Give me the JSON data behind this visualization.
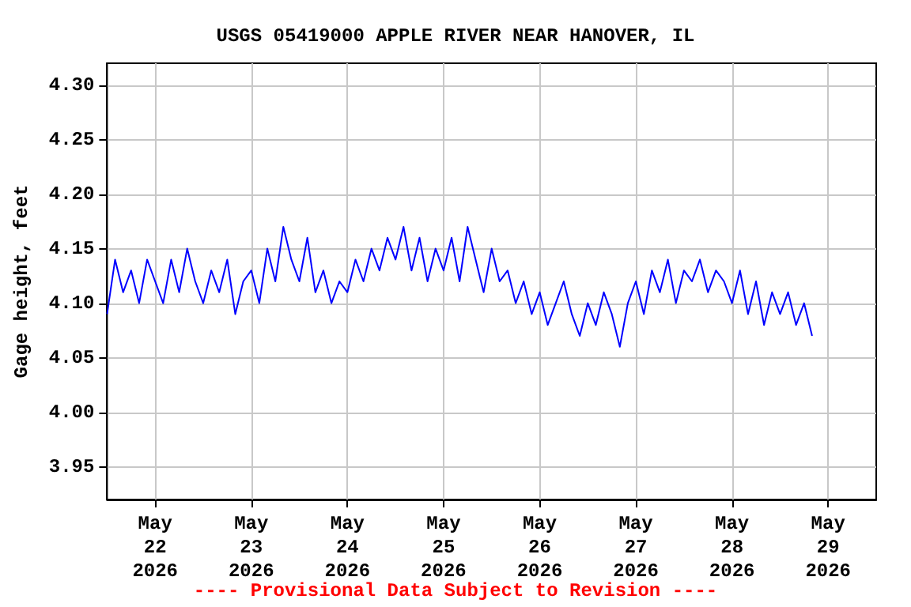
{
  "chart_data": {
    "type": "line",
    "title": "USGS 05419000 APPLE RIVER NEAR HANOVER, IL",
    "ylabel": "Gage height, feet",
    "annotations": [
      "---- Provisional Data Subject to Revision ----"
    ],
    "x": [
      "2026-05-21T12:00",
      "2026-05-21T14:00",
      "2026-05-21T16:00",
      "2026-05-21T18:00",
      "2026-05-21T20:00",
      "2026-05-21T22:00",
      "2026-05-22T00:00",
      "2026-05-22T02:00",
      "2026-05-22T04:00",
      "2026-05-22T06:00",
      "2026-05-22T08:00",
      "2026-05-22T10:00",
      "2026-05-22T12:00",
      "2026-05-22T14:00",
      "2026-05-22T16:00",
      "2026-05-22T18:00",
      "2026-05-22T20:00",
      "2026-05-22T22:00",
      "2026-05-23T00:00",
      "2026-05-23T02:00",
      "2026-05-23T04:00",
      "2026-05-23T06:00",
      "2026-05-23T08:00",
      "2026-05-23T10:00",
      "2026-05-23T12:00",
      "2026-05-23T14:00",
      "2026-05-23T16:00",
      "2026-05-23T18:00",
      "2026-05-23T20:00",
      "2026-05-23T22:00",
      "2026-05-24T00:00",
      "2026-05-24T02:00",
      "2026-05-24T04:00",
      "2026-05-24T06:00",
      "2026-05-24T08:00",
      "2026-05-24T10:00",
      "2026-05-24T12:00",
      "2026-05-24T14:00",
      "2026-05-24T16:00",
      "2026-05-24T18:00",
      "2026-05-24T20:00",
      "2026-05-24T22:00",
      "2026-05-25T00:00",
      "2026-05-25T02:00",
      "2026-05-25T04:00",
      "2026-05-25T06:00",
      "2026-05-25T08:00",
      "2026-05-25T10:00",
      "2026-05-25T12:00",
      "2026-05-25T14:00",
      "2026-05-25T16:00",
      "2026-05-25T18:00",
      "2026-05-25T20:00",
      "2026-05-25T22:00",
      "2026-05-26T00:00",
      "2026-05-26T02:00",
      "2026-05-26T04:00",
      "2026-05-26T06:00",
      "2026-05-26T08:00",
      "2026-05-26T10:00",
      "2026-05-26T12:00",
      "2026-05-26T14:00",
      "2026-05-26T16:00",
      "2026-05-26T18:00",
      "2026-05-26T20:00",
      "2026-05-26T22:00",
      "2026-05-27T00:00",
      "2026-05-27T02:00",
      "2026-05-27T04:00",
      "2026-05-27T06:00",
      "2026-05-27T08:00",
      "2026-05-27T10:00",
      "2026-05-27T12:00",
      "2026-05-27T14:00",
      "2026-05-27T16:00",
      "2026-05-27T18:00",
      "2026-05-27T20:00",
      "2026-05-27T22:00",
      "2026-05-28T00:00",
      "2026-05-28T02:00",
      "2026-05-28T04:00",
      "2026-05-28T06:00",
      "2026-05-28T08:00",
      "2026-05-28T10:00",
      "2026-05-28T12:00",
      "2026-05-28T14:00",
      "2026-05-28T16:00",
      "2026-05-28T18:00",
      "2026-05-28T20:00"
    ],
    "series": [
      {
        "color": "#0000ff",
        "values": [
          4.09,
          4.14,
          4.11,
          4.13,
          4.1,
          4.14,
          4.12,
          4.1,
          4.14,
          4.11,
          4.15,
          4.12,
          4.1,
          4.13,
          4.11,
          4.14,
          4.09,
          4.12,
          4.13,
          4.1,
          4.15,
          4.12,
          4.17,
          4.14,
          4.12,
          4.16,
          4.11,
          4.13,
          4.1,
          4.12,
          4.11,
          4.14,
          4.12,
          4.15,
          4.13,
          4.16,
          4.14,
          4.17,
          4.13,
          4.16,
          4.12,
          4.15,
          4.13,
          4.16,
          4.12,
          4.17,
          4.14,
          4.11,
          4.15,
          4.12,
          4.13,
          4.1,
          4.12,
          4.09,
          4.11,
          4.08,
          4.1,
          4.12,
          4.09,
          4.07,
          4.1,
          4.08,
          4.11,
          4.09,
          4.06,
          4.1,
          4.12,
          4.09,
          4.13,
          4.11,
          4.14,
          4.1,
          4.13,
          4.12,
          4.14,
          4.11,
          4.13,
          4.12,
          4.1,
          4.13,
          4.09,
          4.12,
          4.08,
          4.11,
          4.09,
          4.11,
          4.08,
          4.1,
          4.07
        ]
      }
    ],
    "xlim": [
      "2026-05-21T12:00",
      "2026-05-29T12:00"
    ],
    "xticks": [
      {
        "value": "2026-05-22",
        "label": "May\n22\n2026"
      },
      {
        "value": "2026-05-23",
        "label": "May\n23\n2026"
      },
      {
        "value": "2026-05-24",
        "label": "May\n24\n2026"
      },
      {
        "value": "2026-05-25",
        "label": "May\n25\n2026"
      },
      {
        "value": "2026-05-26",
        "label": "May\n26\n2026"
      },
      {
        "value": "2026-05-27",
        "label": "May\n27\n2026"
      },
      {
        "value": "2026-05-28",
        "label": "May\n28\n2026"
      },
      {
        "value": "2026-05-29",
        "label": "May\n29\n2026"
      }
    ],
    "ylim": [
      3.92,
      4.32
    ],
    "yticks": [
      {
        "value": 3.95,
        "label": "3.95"
      },
      {
        "value": 4.0,
        "label": "4.00"
      },
      {
        "value": 4.05,
        "label": "4.05"
      },
      {
        "value": 4.1,
        "label": "4.10"
      },
      {
        "value": 4.15,
        "label": "4.15"
      },
      {
        "value": 4.2,
        "label": "4.20"
      },
      {
        "value": 4.25,
        "label": "4.25"
      },
      {
        "value": 4.3,
        "label": "4.30"
      }
    ],
    "grid": true,
    "marker": "none",
    "line_style": "solid"
  }
}
